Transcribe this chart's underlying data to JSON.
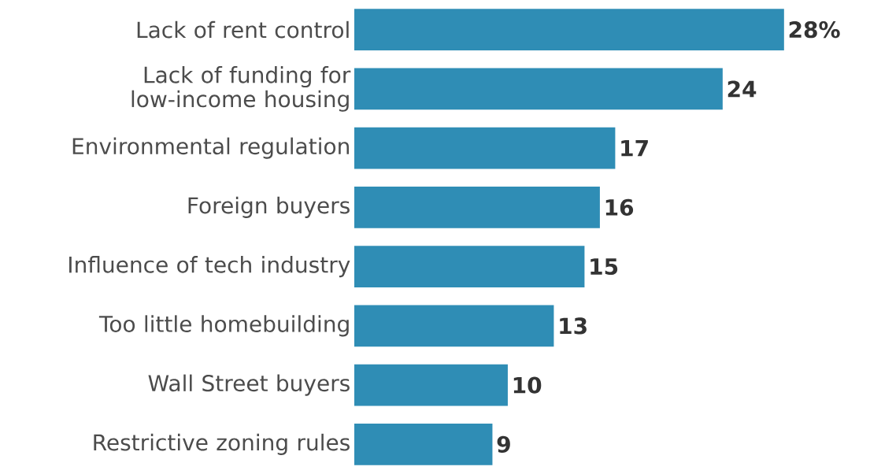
{
  "chart_data": {
    "type": "bar",
    "orientation": "horizontal",
    "categories": [
      "Lack of rent control",
      "Lack of funding for low-income housing",
      "Environmental regulation",
      "Foreign buyers",
      "Influence of tech industry",
      "Too little homebuilding",
      "Wall Street buyers",
      "Restrictive zoning rules"
    ],
    "values": [
      28,
      24,
      17,
      16,
      15,
      13,
      10,
      9
    ],
    "value_labels": [
      "28%",
      "24",
      "17",
      "16",
      "15",
      "13",
      "10",
      "9"
    ],
    "color": "#2f8db5"
  }
}
